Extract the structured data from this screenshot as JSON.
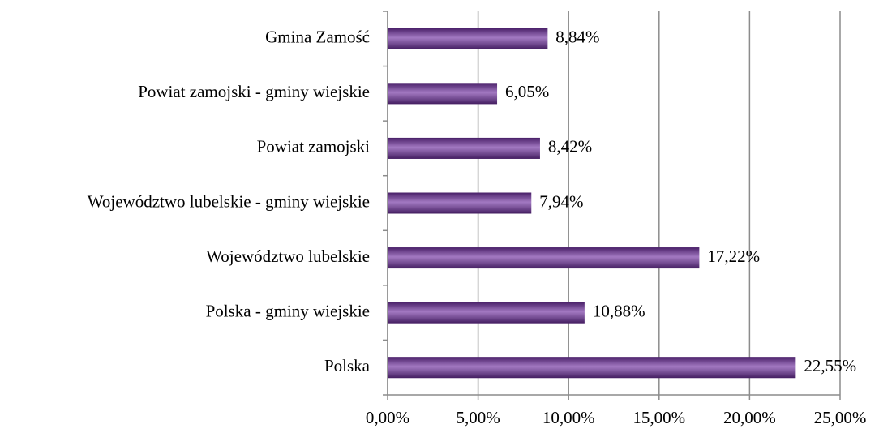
{
  "chart_data": {
    "type": "bar",
    "orientation": "horizontal",
    "categories": [
      "Gmina Zamość",
      "Powiat zamojski - gminy wiejskie",
      "Powiat zamojski",
      "Województwo lubelskie - gminy wiejskie",
      "Województwo lubelskie",
      "Polska - gminy wiejskie",
      "Polska"
    ],
    "values": [
      8.84,
      6.05,
      8.42,
      7.94,
      17.22,
      10.88,
      22.55
    ],
    "value_labels": [
      "8,84%",
      "6,05%",
      "8,42%",
      "7,94%",
      "17,22%",
      "10,88%",
      "22,55%"
    ],
    "color": "#7030a0",
    "xlim": [
      0,
      25
    ],
    "xticks": [
      {
        "value": 0,
        "label": "0,00%"
      },
      {
        "value": 5,
        "label": "5,00%"
      },
      {
        "value": 10,
        "label": "10,00%"
      },
      {
        "value": 15,
        "label": "15,00%"
      },
      {
        "value": 20,
        "label": "20,00%"
      },
      {
        "value": 25,
        "label": "25,00%"
      }
    ],
    "grid": true
  }
}
